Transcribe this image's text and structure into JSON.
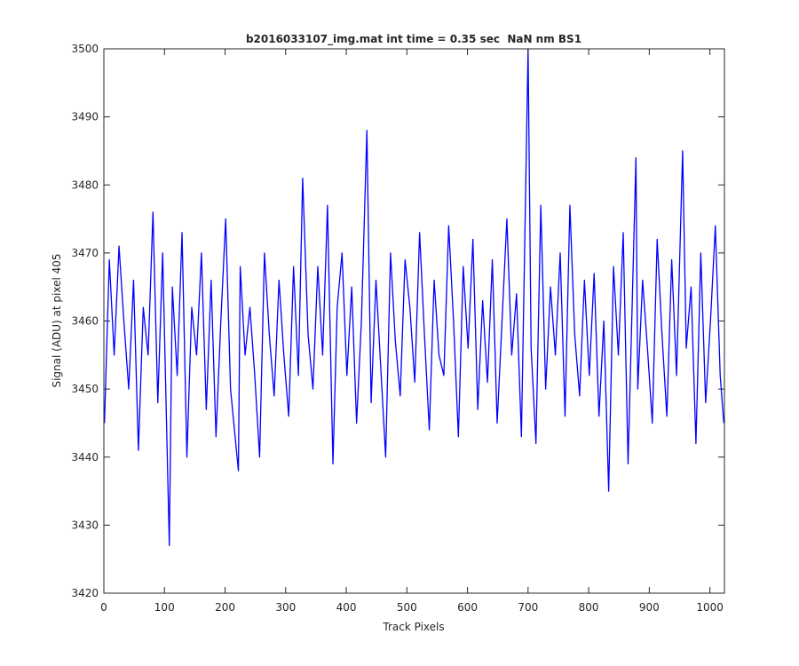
{
  "chart_data": {
    "type": "line",
    "title": "b2016033107_img.mat int time = 0.35 sec  NaN nm BS1",
    "x_label": "Track Pixels",
    "y_label": "Signal (ADU) at pixel 405",
    "xlim": [
      0,
      1024
    ],
    "ylim": [
      3420,
      3500
    ],
    "xticks": [
      0,
      100,
      200,
      300,
      400,
      500,
      600,
      700,
      800,
      900,
      1000
    ],
    "yticks": [
      3420,
      3430,
      3440,
      3450,
      3460,
      3470,
      3480,
      3490,
      3500
    ],
    "grid": false,
    "x": [
      1,
      9,
      17,
      25,
      33,
      41,
      49,
      57,
      65,
      73,
      81,
      89,
      97,
      108,
      113,
      121,
      129,
      137,
      145,
      153,
      161,
      169,
      177,
      185,
      193,
      201,
      209,
      222,
      225,
      233,
      241,
      249,
      257,
      265,
      273,
      281,
      289,
      297,
      305,
      313,
      321,
      328,
      337,
      345,
      353,
      361,
      369,
      378,
      385,
      393,
      401,
      409,
      417,
      425,
      434,
      441,
      449,
      457,
      465,
      473,
      481,
      489,
      497,
      505,
      513,
      521,
      529,
      537,
      545,
      553,
      561,
      569,
      577,
      585,
      593,
      601,
      609,
      617,
      625,
      633,
      641,
      649,
      657,
      665,
      673,
      681,
      689,
      700,
      705,
      713,
      721,
      729,
      737,
      745,
      753,
      761,
      769,
      777,
      785,
      793,
      801,
      809,
      817,
      825,
      833,
      841,
      849,
      857,
      865,
      878,
      881,
      889,
      897,
      905,
      913,
      921,
      929,
      937,
      945,
      955,
      961,
      969,
      977,
      985,
      993,
      1001,
      1009,
      1017,
      1023
    ],
    "series": [
      {
        "color": "#0000ff",
        "values": [
          3445,
          3469,
          3455,
          3471,
          3460,
          3450,
          3466,
          3441,
          3462,
          3455,
          3476,
          3448,
          3470,
          3427,
          3465,
          3452,
          3473,
          3440,
          3462,
          3455,
          3470,
          3447,
          3466,
          3443,
          3460,
          3475,
          3450,
          3438,
          3468,
          3455,
          3462,
          3452,
          3440,
          3470,
          3458,
          3449,
          3466,
          3455,
          3446,
          3468,
          3452,
          3481,
          3458,
          3450,
          3468,
          3455,
          3477,
          3439,
          3462,
          3470,
          3452,
          3465,
          3445,
          3460,
          3488,
          3448,
          3466,
          3453,
          3440,
          3470,
          3457,
          3449,
          3469,
          3462,
          3451,
          3473,
          3458,
          3444,
          3466,
          3455,
          3452,
          3474,
          3460,
          3443,
          3468,
          3456,
          3472,
          3447,
          3463,
          3451,
          3469,
          3445,
          3460,
          3475,
          3455,
          3464,
          3443,
          3500,
          3456,
          3442,
          3477,
          3450,
          3465,
          3455,
          3470,
          3446,
          3477,
          3458,
          3449,
          3466,
          3452,
          3467,
          3446,
          3460,
          3435,
          3468,
          3455,
          3473,
          3439,
          3484,
          3450,
          3466,
          3456,
          3445,
          3472,
          3458,
          3446,
          3469,
          3452,
          3485,
          3456,
          3465,
          3442,
          3470,
          3448,
          3460,
          3474,
          3452,
          3445
        ]
      }
    ]
  }
}
